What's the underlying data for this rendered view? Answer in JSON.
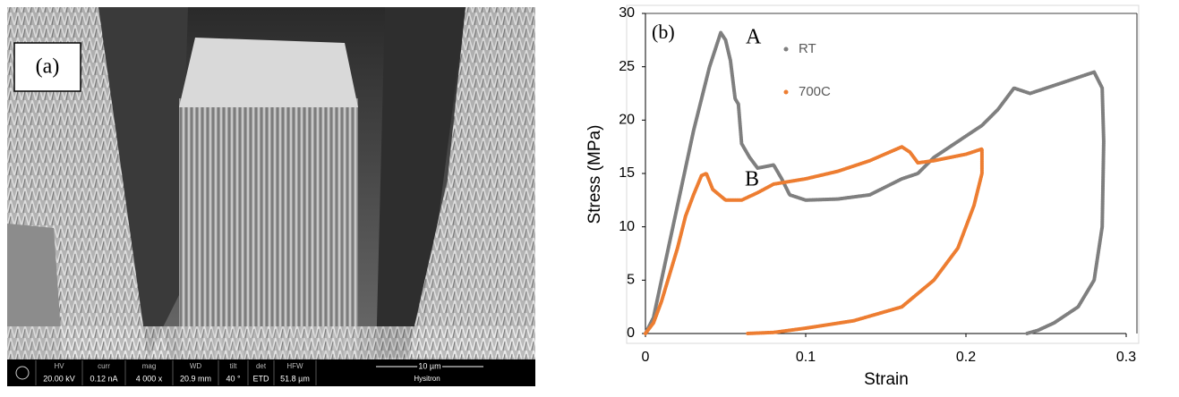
{
  "panel_a": {
    "label": "(a)",
    "info_bar": [
      {
        "name": "HV",
        "value": "20.00 kV"
      },
      {
        "name": "curr",
        "value": "0.12 nA"
      },
      {
        "name": "mag",
        "value": "4 000 x"
      },
      {
        "name": "WD",
        "value": "20.9 mm"
      },
      {
        "name": "tilt",
        "value": "40 °"
      },
      {
        "name": "det",
        "value": "ETD"
      },
      {
        "name": "HFW",
        "value": "51.8 µm"
      }
    ],
    "scale_bar": "10 µm",
    "brand": "Hysitron"
  },
  "chart_data": {
    "type": "line",
    "annotations": [
      "(b)",
      "A",
      "B"
    ],
    "x_label": "Strain",
    "y_label": "Stress (MPa)",
    "xlim": [
      0,
      0.3
    ],
    "xticks": [
      0,
      0.1,
      0.2,
      0.3
    ],
    "ylim": [
      0,
      30
    ],
    "yticks": [
      0,
      5,
      10,
      15,
      20,
      25,
      30
    ],
    "grid": false,
    "legend": "upper left",
    "series": [
      {
        "name": "RT",
        "color": "#7f7f7f",
        "x": [
          0,
          0.005,
          0.01,
          0.02,
          0.03,
          0.04,
          0.047,
          0.05,
          0.053,
          0.056,
          0.058,
          0.06,
          0.065,
          0.07,
          0.08,
          0.085,
          0.09,
          0.1,
          0.12,
          0.14,
          0.16,
          0.17,
          0.18,
          0.2,
          0.21,
          0.22,
          0.23,
          0.24,
          0.26,
          0.28,
          0.285,
          0.286,
          0.285,
          0.28,
          0.27,
          0.255,
          0.245,
          0.238
        ],
        "values": [
          0,
          1.5,
          5,
          12,
          19,
          25,
          28.2,
          27.5,
          25.6,
          22,
          21.5,
          17.8,
          16.5,
          15.5,
          15.8,
          14.5,
          13,
          12.5,
          12.6,
          13,
          14.5,
          15,
          16.5,
          18.5,
          19.5,
          21,
          23,
          22.5,
          23.5,
          24.5,
          23,
          18,
          10,
          5,
          2.5,
          1,
          0.3,
          0
        ]
      },
      {
        "name": "700C",
        "color": "#ed7d31",
        "x": [
          0,
          0.005,
          0.01,
          0.02,
          0.025,
          0.03,
          0.035,
          0.038,
          0.042,
          0.05,
          0.06,
          0.07,
          0.08,
          0.1,
          0.12,
          0.14,
          0.16,
          0.165,
          0.17,
          0.18,
          0.2,
          0.21,
          0.21,
          0.205,
          0.195,
          0.18,
          0.16,
          0.13,
          0.1,
          0.08,
          0.063
        ],
        "values": [
          0,
          1,
          3,
          8,
          11,
          13,
          14.8,
          15,
          13.5,
          12.5,
          12.5,
          13.2,
          14,
          14.5,
          15.2,
          16.2,
          17.5,
          17,
          16,
          16.2,
          16.8,
          17.3,
          15,
          12,
          8,
          5,
          2.5,
          1.2,
          0.5,
          0.1,
          0
        ]
      }
    ]
  }
}
